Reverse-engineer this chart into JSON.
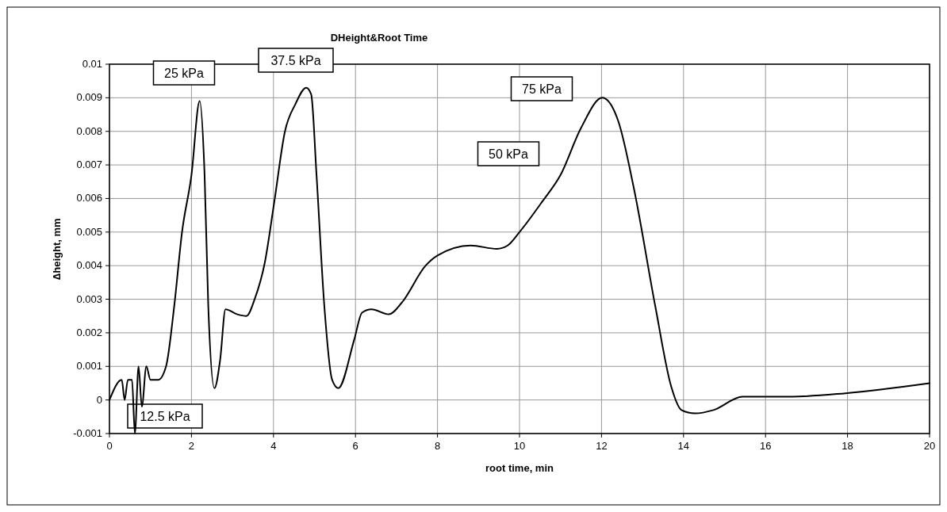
{
  "chart_data": {
    "type": "line",
    "title": "DHeight&Root Time",
    "xlabel": "root time, min",
    "ylabel": "∆height, mm",
    "xlim": [
      0,
      20
    ],
    "xticks": [
      0,
      2,
      4,
      6,
      8,
      10,
      12,
      14,
      16,
      18,
      20
    ],
    "ylim": [
      -0.001,
      0.01
    ],
    "yticks": [
      -0.001,
      0,
      0.001,
      0.002,
      0.003,
      0.004,
      0.005,
      0.006,
      0.007,
      0.008,
      0.009,
      0.01
    ],
    "grid": true,
    "marker": "none",
    "line_style": "solid",
    "series": [
      {
        "color": "#000000",
        "x": [
          0,
          0.3,
          0.37,
          0.45,
          0.55,
          0.62,
          0.71,
          0.79,
          0.9,
          1.0,
          1.19,
          1.38,
          1.58,
          1.77,
          2.0,
          2.2,
          2.32,
          2.41,
          2.56,
          2.7,
          2.83,
          3.12,
          3.34,
          3.54,
          3.79,
          4.02,
          4.28,
          4.53,
          4.8,
          4.92,
          5.05,
          5.24,
          5.43,
          5.58,
          5.97,
          6.16,
          6.39,
          6.81,
          7.13,
          7.71,
          8.0,
          8.81,
          9.45,
          9.71,
          10.0,
          10.55,
          11.0,
          11.5,
          12.02,
          12.41,
          12.79,
          13.31,
          13.7,
          13.95,
          14.28,
          14.73,
          15.44,
          16.66,
          17.95,
          20
        ],
        "values": [
          0,
          0.0006,
          0,
          0.0006,
          0.0006,
          -0.001,
          0.001,
          -0.0002,
          0.001,
          0.0006,
          0.0006,
          0.001,
          0.0028,
          0.005,
          0.0067,
          0.0089,
          0.0067,
          0.0028,
          0.00035,
          0.0012,
          0.0027,
          0.00255,
          0.0025,
          0.003,
          0.0041,
          0.0059,
          0.008,
          0.0088,
          0.0093,
          0.0091,
          0.0067,
          0.0028,
          0.0006,
          0.00035,
          0.0018,
          0.0026,
          0.0027,
          0.00255,
          0.0029,
          0.004,
          0.0043,
          0.0046,
          0.0045,
          0.0046,
          0.005,
          0.0059,
          0.0067,
          0.0081,
          0.009,
          0.0083,
          0.0063,
          0.0028,
          0.0004,
          -0.0003,
          -0.0004,
          -0.0003,
          0.0001,
          0.0001,
          0.0002,
          0.0005
        ]
      }
    ],
    "annotations": [
      "25 kPa",
      "37.5 kPa",
      "75 kPa",
      "50 kPa",
      "12.5 kPa"
    ]
  }
}
